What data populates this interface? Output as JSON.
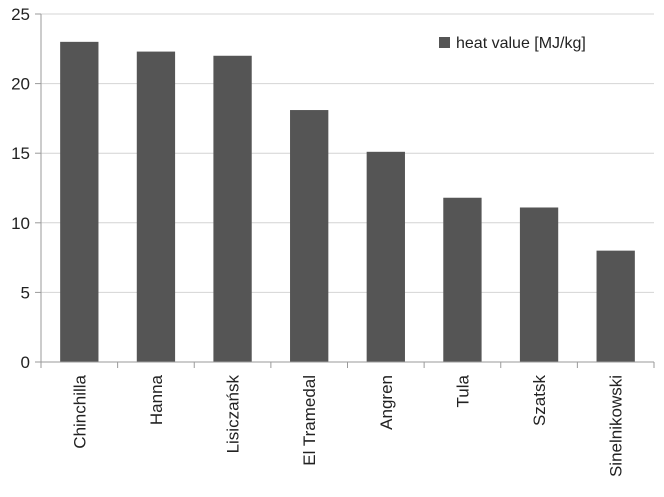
{
  "chart_data": {
    "type": "bar",
    "categories": [
      "Chinchilla",
      "Hanna",
      "Lisiczańsk",
      "El Tramedal",
      "Angren",
      "Tula",
      "Szatsk",
      "Sinelnikowski"
    ],
    "series": [
      {
        "name": "heat value [MJ/kg]",
        "values": [
          23.0,
          22.3,
          22.0,
          18.1,
          15.1,
          11.8,
          11.1,
          8.0
        ],
        "color": "#555555"
      }
    ],
    "ylim": [
      0,
      25
    ],
    "yticks": [
      0,
      5,
      10,
      15,
      20,
      25
    ],
    "ytick_labels": [
      "0",
      "5",
      "10",
      "15",
      "20",
      "25"
    ],
    "grid": true,
    "legend": "top-right"
  }
}
